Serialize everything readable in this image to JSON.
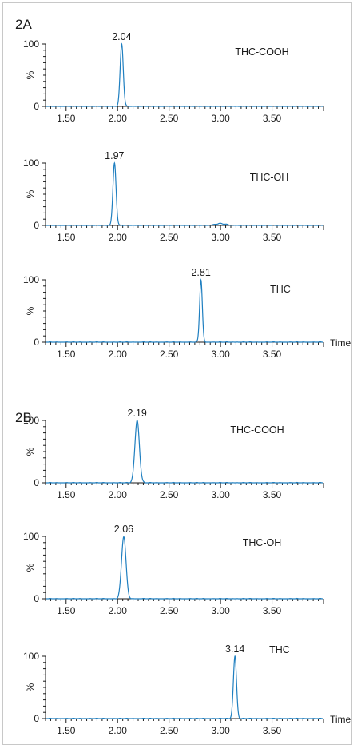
{
  "panels": [
    {
      "label": "2A"
    },
    {
      "label": "2B"
    }
  ],
  "ylabel": "%",
  "xlabel": "Time",
  "colors": {
    "trace": "#1f7fc0",
    "axis": "#1a1a1a"
  },
  "chart_data": [
    {
      "type": "line",
      "panel": "2A",
      "title": "THC-COOH",
      "xlim": [
        1.3,
        4.0
      ],
      "ylim": [
        0,
        100
      ],
      "xticks": [
        "1.50",
        "2.00",
        "2.50",
        "3.00",
        "3.50"
      ],
      "yticks": [
        "0",
        "100"
      ],
      "peak": {
        "rt": 2.04,
        "label": "2.04",
        "height": 100,
        "width": 0.035
      },
      "show_xlabel": false
    },
    {
      "type": "line",
      "panel": "2A",
      "title": "THC-OH",
      "xlim": [
        1.3,
        4.0
      ],
      "ylim": [
        0,
        100
      ],
      "xticks": [
        "1.50",
        "2.00",
        "2.50",
        "3.00",
        "3.50"
      ],
      "yticks": [
        "0",
        "100"
      ],
      "peak": {
        "rt": 1.97,
        "label": "1.97",
        "height": 100,
        "width": 0.035
      },
      "minor_bump": {
        "rt": 3.0,
        "height": 3,
        "width": 0.12
      },
      "show_xlabel": false
    },
    {
      "type": "line",
      "panel": "2A",
      "title": "THC",
      "xlim": [
        1.3,
        4.0
      ],
      "ylim": [
        0,
        100
      ],
      "xticks": [
        "1.50",
        "2.00",
        "2.50",
        "3.00",
        "3.50"
      ],
      "yticks": [
        "0",
        "100"
      ],
      "peak": {
        "rt": 2.81,
        "label": "2.81",
        "height": 100,
        "width": 0.03
      },
      "show_xlabel": true
    },
    {
      "type": "line",
      "panel": "2B",
      "title": "THC-COOH",
      "xlim": [
        1.3,
        4.0
      ],
      "ylim": [
        0,
        100
      ],
      "xticks": [
        "1.50",
        "2.00",
        "2.50",
        "3.00",
        "3.50"
      ],
      "yticks": [
        "0",
        "100"
      ],
      "peak": {
        "rt": 2.19,
        "label": "2.19",
        "height": 100,
        "width": 0.05
      },
      "show_xlabel": false
    },
    {
      "type": "line",
      "panel": "2B",
      "title": "THC-OH",
      "xlim": [
        1.3,
        4.0
      ],
      "ylim": [
        0,
        100
      ],
      "xticks": [
        "1.50",
        "2.00",
        "2.50",
        "3.00",
        "3.50"
      ],
      "yticks": [
        "0",
        "100"
      ],
      "peak": {
        "rt": 2.06,
        "label": "2.06",
        "height": 100,
        "width": 0.05
      },
      "show_xlabel": false
    },
    {
      "type": "line",
      "panel": "2B",
      "title": "THC",
      "xlim": [
        1.3,
        4.0
      ],
      "ylim": [
        0,
        100
      ],
      "xticks": [
        "1.50",
        "2.00",
        "2.50",
        "3.00",
        "3.50"
      ],
      "yticks": [
        "0",
        "100"
      ],
      "peak": {
        "rt": 3.14,
        "label": "3.14",
        "height": 100,
        "width": 0.035
      },
      "show_xlabel": true
    }
  ]
}
